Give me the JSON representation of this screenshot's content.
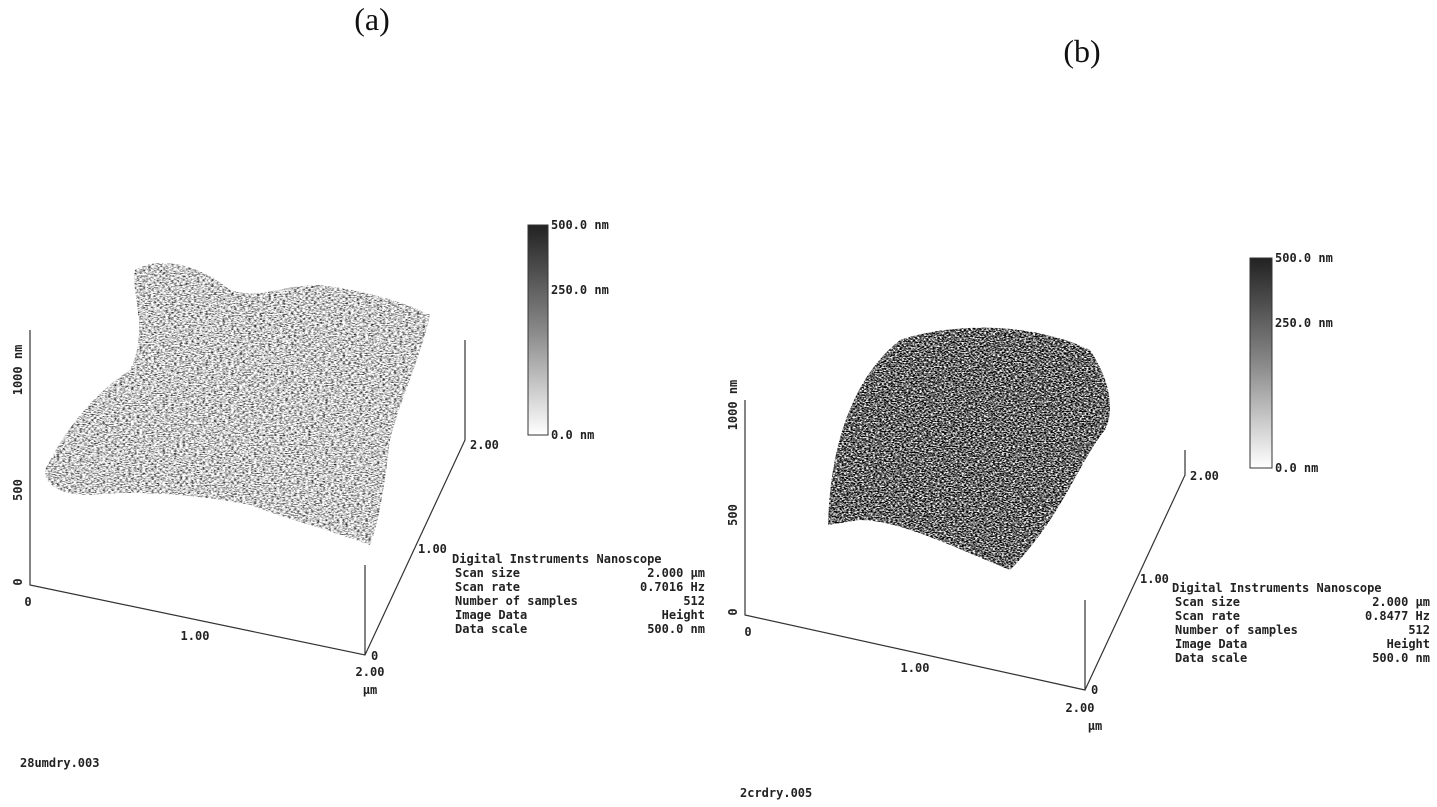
{
  "panels": [
    {
      "label": "(a)",
      "colorbar": [
        "500.0 nm",
        "250.0 nm",
        "0.0 nm"
      ],
      "z_axis": [
        "1000 nm",
        "500",
        "0"
      ],
      "x_axis": [
        "0",
        "1.00",
        "2.00",
        "µm"
      ],
      "y_axis": [
        "0",
        "1.00",
        "2.00"
      ],
      "info": {
        "title": "Digital Instruments Nanoscope",
        "rows": [
          [
            "Scan size",
            "2.000 µm"
          ],
          [
            "Scan rate",
            "0.7016 Hz"
          ],
          [
            "Number of samples",
            "512"
          ],
          [
            "Image Data",
            "Height"
          ],
          [
            "Data scale",
            "500.0 nm"
          ]
        ]
      },
      "filename": "28umdry.003"
    },
    {
      "label": "(b)",
      "colorbar": [
        "500.0 nm",
        "250.0 nm",
        "0.0 nm"
      ],
      "z_axis": [
        "1000 nm",
        "500",
        "0"
      ],
      "x_axis": [
        "0",
        "1.00",
        "2.00",
        "µm"
      ],
      "y_axis": [
        "0",
        "1.00",
        "2.00"
      ],
      "info": {
        "title": "Digital Instruments Nanoscope",
        "rows": [
          [
            "Scan size",
            "2.000 µm"
          ],
          [
            "Scan rate",
            "0.8477 Hz"
          ],
          [
            "Number of samples",
            "512"
          ],
          [
            "Image Data",
            "Height"
          ],
          [
            "Data scale",
            "500.0 nm"
          ]
        ]
      },
      "filename": "2crdry.005"
    }
  ]
}
